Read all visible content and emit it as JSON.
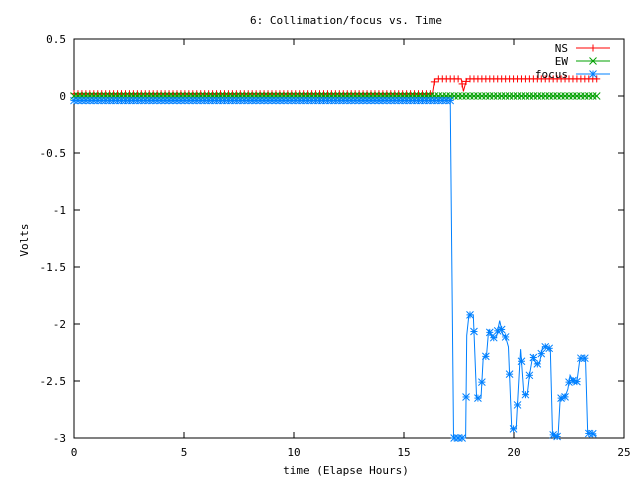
{
  "chart_data": {
    "type": "line",
    "title": "6: Collimation/focus vs. Time",
    "xlabel": "time (Elapse Hours)",
    "ylabel": "Volts",
    "xlim": [
      0,
      25
    ],
    "ylim": [
      -3,
      0.5
    ],
    "xticks": [
      0,
      5,
      10,
      15,
      20,
      25
    ],
    "xtick_labels": [
      "0",
      "5",
      "10",
      "15",
      "20",
      "25"
    ],
    "yticks": [
      0.5,
      0,
      -0.5,
      -1,
      -1.5,
      -2,
      -2.5,
      -3
    ],
    "ytick_labels": [
      "0.5",
      "0",
      "-0.5",
      "-1",
      "-1.5",
      "-2",
      "-2.5",
      "-3"
    ],
    "legend_position": "top-right",
    "series": [
      {
        "name": "NS",
        "color": "#ff0000",
        "marker": "plus",
        "points": [
          [
            0,
            0.02
          ],
          [
            16.3,
            0.02
          ],
          [
            16.4,
            0.15
          ],
          [
            17.6,
            0.15
          ],
          [
            17.7,
            0.04
          ],
          [
            17.85,
            0.15
          ],
          [
            23.8,
            0.15
          ]
        ]
      },
      {
        "name": "EW",
        "color": "#00a000",
        "marker": "cross",
        "points": [
          [
            0,
            0.0
          ],
          [
            23.8,
            0.0
          ]
        ]
      },
      {
        "name": "focus",
        "color": "#0080ff",
        "marker": "star",
        "points": [
          [
            0,
            -0.04
          ],
          [
            17.1,
            -0.04
          ],
          [
            17.25,
            -3.0
          ],
          [
            17.8,
            -3.0
          ],
          [
            17.85,
            -2.1
          ],
          [
            17.95,
            -1.92
          ],
          [
            18.15,
            -1.92
          ],
          [
            18.3,
            -2.65
          ],
          [
            18.5,
            -2.65
          ],
          [
            18.6,
            -2.3
          ],
          [
            18.75,
            -2.28
          ],
          [
            18.85,
            -2.05
          ],
          [
            19.0,
            -2.12
          ],
          [
            19.2,
            -2.12
          ],
          [
            19.35,
            -1.97
          ],
          [
            19.5,
            -2.1
          ],
          [
            19.6,
            -2.1
          ],
          [
            19.75,
            -2.2
          ],
          [
            19.9,
            -2.92
          ],
          [
            20.1,
            -2.92
          ],
          [
            20.2,
            -2.57
          ],
          [
            20.3,
            -2.22
          ],
          [
            20.45,
            -2.62
          ],
          [
            20.6,
            -2.62
          ],
          [
            20.7,
            -2.45
          ],
          [
            20.85,
            -2.28
          ],
          [
            21.0,
            -2.35
          ],
          [
            21.15,
            -2.35
          ],
          [
            21.3,
            -2.2
          ],
          [
            21.5,
            -2.2
          ],
          [
            21.65,
            -2.22
          ],
          [
            21.75,
            -2.97
          ],
          [
            22.0,
            -2.99
          ],
          [
            22.1,
            -2.65
          ],
          [
            22.3,
            -2.65
          ],
          [
            22.45,
            -2.57
          ],
          [
            22.55,
            -2.45
          ],
          [
            22.75,
            -2.52
          ],
          [
            22.85,
            -2.52
          ],
          [
            23.0,
            -2.3
          ],
          [
            23.25,
            -2.3
          ],
          [
            23.35,
            -2.96
          ],
          [
            23.55,
            -2.96
          ],
          [
            23.75,
            -2.98
          ]
        ]
      }
    ]
  }
}
